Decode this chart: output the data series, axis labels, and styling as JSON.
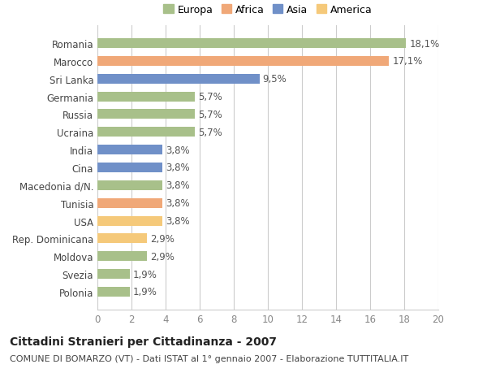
{
  "categories": [
    "Polonia",
    "Svezia",
    "Moldova",
    "Rep. Dominicana",
    "USA",
    "Tunisia",
    "Macedonia d/N.",
    "Cina",
    "India",
    "Ucraina",
    "Russia",
    "Germania",
    "Sri Lanka",
    "Marocco",
    "Romania"
  ],
  "values": [
    1.9,
    1.9,
    2.9,
    2.9,
    3.8,
    3.8,
    3.8,
    3.8,
    3.8,
    5.7,
    5.7,
    5.7,
    9.5,
    17.1,
    18.1
  ],
  "colors": [
    "#a8c08a",
    "#a8c08a",
    "#a8c08a",
    "#f5c97a",
    "#f5c97a",
    "#f0a878",
    "#a8c08a",
    "#7090c8",
    "#7090c8",
    "#a8c08a",
    "#a8c08a",
    "#a8c08a",
    "#7090c8",
    "#f0a878",
    "#a8c08a"
  ],
  "legend_labels": [
    "Europa",
    "Africa",
    "Asia",
    "America"
  ],
  "legend_colors": [
    "#a8c08a",
    "#f0a878",
    "#7090c8",
    "#f5c97a"
  ],
  "title": "Cittadini Stranieri per Cittadinanza - 2007",
  "subtitle": "COMUNE DI BOMARZO (VT) - Dati ISTAT al 1° gennaio 2007 - Elaborazione TUTTITALIA.IT",
  "xlim": [
    0,
    20
  ],
  "xticks": [
    0,
    2,
    4,
    6,
    8,
    10,
    12,
    14,
    16,
    18,
    20
  ],
  "background_color": "#ffffff",
  "grid_color": "#cccccc",
  "bar_height": 0.55,
  "label_fontsize": 8.5,
  "value_fontsize": 8.5,
  "tick_fontsize": 8.5
}
